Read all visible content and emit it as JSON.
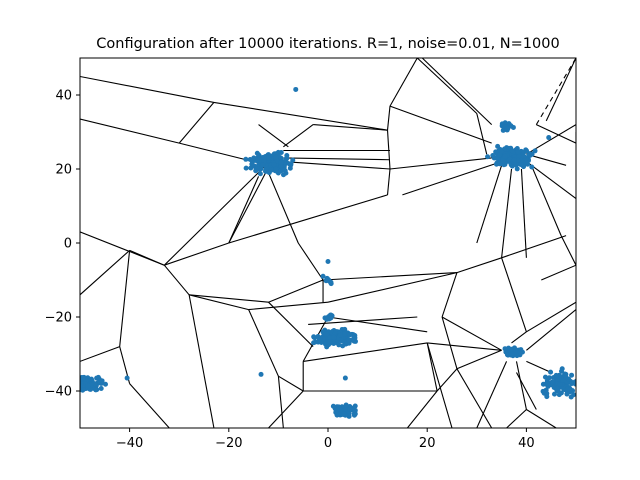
{
  "chart_data": {
    "type": "scatter",
    "title": "Configuration after 10000 iterations. R=1, noise=0.01, N=1000",
    "xlabel": "",
    "ylabel": "",
    "xlim": [
      -50,
      50
    ],
    "ylim": [
      -50,
      50
    ],
    "xticks": [
      -40,
      -20,
      0,
      20,
      40
    ],
    "yticks": [
      -40,
      -20,
      0,
      20,
      40
    ],
    "grid": false,
    "point_color": "#1f77b4",
    "edge_color": "#000000",
    "clusters": [
      {
        "center": [
          -11.5,
          21.5
        ],
        "spread": [
          3.5,
          2.2
        ],
        "count": 190
      },
      {
        "center": [
          37,
          23
        ],
        "spread": [
          3.5,
          2.2
        ],
        "count": 170
      },
      {
        "center": [
          36,
          31.5
        ],
        "spread": [
          1.0,
          1.0
        ],
        "count": 25
      },
      {
        "center": [
          1.5,
          -25.5
        ],
        "spread": [
          3.2,
          2.0
        ],
        "count": 160
      },
      {
        "center": [
          3.5,
          -45.5
        ],
        "spread": [
          2.2,
          1.6
        ],
        "count": 70
      },
      {
        "center": [
          -48,
          -38
        ],
        "spread": [
          2.2,
          1.8
        ],
        "count": 80
      },
      {
        "center": [
          47,
          -38
        ],
        "spread": [
          3.0,
          2.5
        ],
        "count": 130
      },
      {
        "center": [
          37.5,
          -29.5
        ],
        "spread": [
          1.5,
          1.0
        ],
        "count": 40
      },
      {
        "center": [
          0,
          -20
        ],
        "spread": [
          1.0,
          0.7
        ],
        "count": 10
      },
      {
        "center": [
          0,
          -10
        ],
        "spread": [
          0.8,
          0.9
        ],
        "count": 8
      }
    ],
    "points": [
      [
        -6.5,
        41.5
      ],
      [
        44.5,
        28.5
      ],
      [
        -40.5,
        -36.5
      ],
      [
        -13.5,
        -35.5
      ],
      [
        3.5,
        -36.5
      ],
      [
        0,
        -5
      ],
      [
        -1,
        -9
      ]
    ],
    "voronoi_edges": [
      [
        [
          -50,
          45
        ],
        [
          -23,
          38
        ]
      ],
      [
        [
          -23,
          38
        ],
        [
          12,
          30.5
        ]
      ],
      [
        [
          12,
          30.5
        ],
        [
          12.5,
          37
        ]
      ],
      [
        [
          -50,
          33.5
        ],
        [
          -30,
          27
        ]
      ],
      [
        [
          -30,
          27
        ],
        [
          -23,
          38
        ]
      ],
      [
        [
          -14,
          32
        ],
        [
          -8,
          26
        ]
      ],
      [
        [
          -30,
          27
        ],
        [
          -15,
          22
        ]
      ],
      [
        [
          -50,
          3
        ],
        [
          -33,
          -6
        ]
      ],
      [
        [
          -33,
          -6
        ],
        [
          -11,
          23
        ]
      ],
      [
        [
          -33,
          -6
        ],
        [
          -20,
          0
        ]
      ],
      [
        [
          -20,
          0
        ],
        [
          -11,
          23
        ]
      ],
      [
        [
          -20,
          0
        ],
        [
          12,
          13
        ]
      ],
      [
        [
          12,
          13
        ],
        [
          12.5,
          20
        ]
      ],
      [
        [
          12.5,
          20
        ],
        [
          12,
          30.5
        ]
      ],
      [
        [
          12.5,
          20
        ],
        [
          -9,
          22
        ]
      ],
      [
        [
          -9,
          25
        ],
        [
          12.5,
          25
        ]
      ],
      [
        [
          -12,
          19
        ],
        [
          -6,
          0
        ]
      ],
      [
        [
          -14,
          18
        ],
        [
          -20,
          0
        ]
      ],
      [
        [
          -9,
          26
        ],
        [
          -3,
          32
        ]
      ],
      [
        [
          -3,
          32
        ],
        [
          12,
          30.5
        ]
      ],
      [
        [
          -9,
          23
        ],
        [
          12.5,
          22.5
        ]
      ],
      [
        [
          12.5,
          37
        ],
        [
          18,
          50
        ]
      ],
      [
        [
          18,
          50
        ],
        [
          30,
          35
        ]
      ],
      [
        [
          19,
          50
        ],
        [
          33,
          32
        ]
      ],
      [
        [
          12.5,
          37
        ],
        [
          33,
          27
        ]
      ],
      [
        [
          30,
          35
        ],
        [
          32,
          24
        ]
      ],
      [
        [
          12.5,
          20
        ],
        [
          33,
          23
        ]
      ],
      [
        [
          15,
          13
        ],
        [
          35,
          22
        ]
      ],
      [
        [
          40,
          24
        ],
        [
          50,
          32
        ]
      ],
      [
        [
          40,
          22
        ],
        [
          50,
          12
        ]
      ],
      [
        [
          42,
          32
        ],
        [
          50,
          27
        ]
      ],
      [
        [
          50,
          27
        ],
        [
          50,
          30
        ]
      ],
      [
        [
          40,
          24
        ],
        [
          48,
          21
        ]
      ],
      [
        [
          35,
          21
        ],
        [
          30,
          0
        ]
      ],
      [
        [
          37,
          20
        ],
        [
          35,
          -4
        ]
      ],
      [
        [
          39,
          20
        ],
        [
          40,
          -4
        ]
      ],
      [
        [
          41,
          21
        ],
        [
          47,
          2
        ]
      ],
      [
        [
          44,
          33
        ],
        [
          50,
          50
        ]
      ],
      [
        [
          -33,
          -6
        ],
        [
          -28,
          -14
        ]
      ],
      [
        [
          -28,
          -14
        ],
        [
          -12,
          -16
        ]
      ],
      [
        [
          -12,
          -16
        ],
        [
          -1,
          -10
        ]
      ],
      [
        [
          -1,
          -10
        ],
        [
          26,
          -8
        ]
      ],
      [
        [
          -6,
          0
        ],
        [
          -1,
          -10
        ]
      ],
      [
        [
          -28,
          -14
        ],
        [
          -16,
          -18
        ]
      ],
      [
        [
          -16,
          -18
        ],
        [
          0,
          -16
        ]
      ],
      [
        [
          0,
          -16
        ],
        [
          26,
          -8
        ]
      ],
      [
        [
          26,
          -8
        ],
        [
          35,
          -4
        ]
      ],
      [
        [
          -1,
          -10
        ],
        [
          -1,
          -16
        ]
      ],
      [
        [
          -50,
          -14
        ],
        [
          -40,
          -2
        ]
      ],
      [
        [
          -40,
          -2
        ],
        [
          -33,
          -6
        ]
      ],
      [
        [
          -40,
          -2
        ],
        [
          -42,
          -28
        ]
      ],
      [
        [
          -42,
          -28
        ],
        [
          -40,
          -38
        ]
      ],
      [
        [
          -40,
          -38
        ],
        [
          -32,
          -50
        ]
      ],
      [
        [
          -42,
          -28
        ],
        [
          -50,
          -32
        ]
      ],
      [
        [
          -28,
          -14
        ],
        [
          -23,
          -50
        ]
      ],
      [
        [
          -12,
          -16
        ],
        [
          -3,
          -28
        ]
      ],
      [
        [
          -16,
          -18
        ],
        [
          -10,
          -36
        ]
      ],
      [
        [
          -10,
          -36
        ],
        [
          -5,
          -40
        ]
      ],
      [
        [
          -5,
          -40
        ],
        [
          -12,
          -50
        ]
      ],
      [
        [
          -5,
          -40
        ],
        [
          -5,
          -32
        ]
      ],
      [
        [
          -5,
          -32
        ],
        [
          0,
          -20
        ]
      ],
      [
        [
          -10,
          -36
        ],
        [
          -9,
          -50
        ]
      ],
      [
        [
          -5,
          -32
        ],
        [
          20,
          -27
        ]
      ],
      [
        [
          0,
          -20
        ],
        [
          20,
          -24
        ]
      ],
      [
        [
          -4,
          -22
        ],
        [
          18,
          -20
        ]
      ],
      [
        [
          20,
          -27
        ],
        [
          22,
          -40
        ]
      ],
      [
        [
          22,
          -40
        ],
        [
          16,
          -50
        ]
      ],
      [
        [
          -5,
          -40
        ],
        [
          22,
          -40
        ]
      ],
      [
        [
          20,
          -27
        ],
        [
          25,
          -50
        ]
      ],
      [
        [
          22,
          -40
        ],
        [
          26,
          -34
        ]
      ],
      [
        [
          26,
          -8
        ],
        [
          23,
          -20
        ]
      ],
      [
        [
          23,
          -20
        ],
        [
          26,
          -34
        ]
      ],
      [
        [
          23,
          -20
        ],
        [
          35,
          -29
        ]
      ],
      [
        [
          26,
          -34
        ],
        [
          35,
          -29
        ]
      ],
      [
        [
          30,
          -50
        ],
        [
          36,
          -32
        ]
      ],
      [
        [
          35,
          -4
        ],
        [
          40,
          -24
        ]
      ],
      [
        [
          40,
          -24
        ],
        [
          50,
          -16
        ]
      ],
      [
        [
          40,
          -24
        ],
        [
          37,
          -27
        ]
      ],
      [
        [
          43,
          -10
        ],
        [
          50,
          -6
        ]
      ],
      [
        [
          47,
          2
        ],
        [
          50,
          -6
        ]
      ],
      [
        [
          35,
          -4
        ],
        [
          48,
          2
        ]
      ],
      [
        [
          38,
          -32
        ],
        [
          40,
          -45
        ]
      ],
      [
        [
          40,
          -45
        ],
        [
          36,
          -50
        ]
      ],
      [
        [
          40,
          -32
        ],
        [
          45,
          -35
        ]
      ],
      [
        [
          40,
          -29
        ],
        [
          50,
          -18
        ]
      ],
      [
        [
          38,
          -35
        ],
        [
          42,
          -45
        ]
      ],
      [
        [
          26,
          -34
        ],
        [
          33,
          -50
        ]
      ],
      [
        [
          20,
          -27
        ],
        [
          35,
          -29
        ]
      ],
      [
        [
          40,
          -45
        ],
        [
          46,
          -50
        ]
      ]
    ],
    "voronoi_dashed": [
      [
        [
          42,
          32
        ],
        [
          50,
          50
        ]
      ]
    ]
  }
}
